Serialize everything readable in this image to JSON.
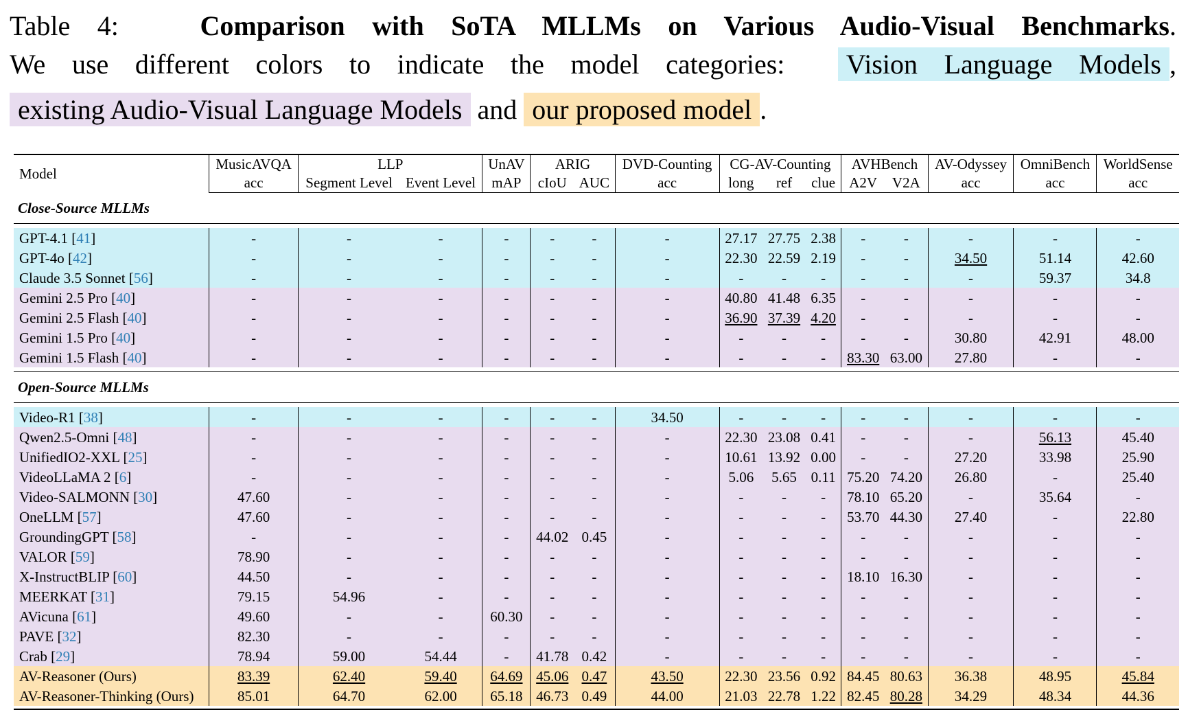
{
  "caption": {
    "label": "Table 4:",
    "title": "Comparison with SoTA MLLMs on Various Audio-Visual Benchmarks",
    "title_end": ".",
    "line2_text": "We use different colors to indicate the model categories:",
    "vlm_label": "Vision Language Models",
    "comma": ",",
    "avlm_label": "existing Audio-Visual Language Models",
    "and_text": "and",
    "ours_label": "our proposed model",
    "end_period": "."
  },
  "colors": {
    "vision_language": "#cdf0f7",
    "audio_visual": "#e8dcef",
    "ours": "#fde3b3",
    "citation": "#2f7fb5"
  },
  "header": {
    "model": "Model",
    "groups": [
      "MusicAVQA",
      "LLP",
      "UnAV",
      "ARIG",
      "DVD-Counting",
      "CG-AV-Counting",
      "AVHBench",
      "AV-Odyssey",
      "OmniBench",
      "WorldSense"
    ],
    "subcolumns": [
      "acc",
      "Segment Level",
      "Event Level",
      "mAP",
      "cIoU",
      "AUC",
      "acc",
      "long",
      "ref",
      "clue",
      "A2V",
      "V2A",
      "acc",
      "acc",
      "acc"
    ]
  },
  "sections": [
    {
      "title": "Close-Source MLLMs",
      "rows": [
        {
          "cat": "vlm",
          "name": "GPT-4.1",
          "ref": "41",
          "cells": [
            "-",
            "-",
            "-",
            "-",
            "-",
            "-",
            "-",
            "27.17",
            "27.75",
            "2.38",
            "-",
            "-",
            "-",
            "-",
            "-"
          ]
        },
        {
          "cat": "vlm",
          "name": "GPT-4o",
          "ref": "42",
          "cells": [
            "-",
            "-",
            "-",
            "-",
            "-",
            "-",
            "-",
            "22.30",
            "22.59",
            "2.19",
            "-",
            "-",
            "34.50",
            "51.14",
            "42.60"
          ]
        },
        {
          "cat": "vlm",
          "name": "Claude 3.5 Sonnet",
          "ref": "56",
          "cells": [
            "-",
            "-",
            "-",
            "-",
            "-",
            "-",
            "-",
            "-",
            "-",
            "-",
            "-",
            "-",
            "-",
            "59.37",
            "34.8"
          ]
        },
        {
          "cat": "avlm",
          "name": "Gemini 2.5 Pro",
          "ref": "40",
          "cells": [
            "-",
            "-",
            "-",
            "-",
            "-",
            "-",
            "-",
            "40.80",
            "41.48",
            "6.35",
            "-",
            "-",
            "-",
            "-",
            "-"
          ]
        },
        {
          "cat": "avlm",
          "name": "Gemini 2.5 Flash",
          "ref": "40",
          "cells": [
            "-",
            "-",
            "-",
            "-",
            "-",
            "-",
            "-",
            "36.90",
            "37.39",
            "4.20",
            "-",
            "-",
            "-",
            "-",
            "-"
          ]
        },
        {
          "cat": "avlm",
          "name": "Gemini 1.5 Pro",
          "ref": "40",
          "cells": [
            "-",
            "-",
            "-",
            "-",
            "-",
            "-",
            "-",
            "-",
            "-",
            "-",
            "-",
            "-",
            "30.80",
            "42.91",
            "48.00"
          ]
        },
        {
          "cat": "avlm",
          "name": "Gemini 1.5 Flash",
          "ref": "40",
          "cells": [
            "-",
            "-",
            "-",
            "-",
            "-",
            "-",
            "-",
            "-",
            "-",
            "-",
            "83.30",
            "63.00",
            "27.80",
            "-",
            "-"
          ]
        }
      ]
    },
    {
      "title": "Open-Source MLLMs",
      "rows": [
        {
          "cat": "vlm",
          "name": "Video-R1",
          "ref": "38",
          "cells": [
            "-",
            "-",
            "-",
            "-",
            "-",
            "-",
            "34.50",
            "-",
            "-",
            "-",
            "-",
            "-",
            "-",
            "-",
            "-"
          ]
        },
        {
          "cat": "avlm",
          "name": "Qwen2.5-Omni",
          "ref": "48",
          "cells": [
            "-",
            "-",
            "-",
            "-",
            "-",
            "-",
            "-",
            "22.30",
            "23.08",
            "0.41",
            "-",
            "-",
            "-",
            "56.13",
            "45.40"
          ]
        },
        {
          "cat": "avlm",
          "name": "UnifiedIO2-XXL",
          "ref": "25",
          "cells": [
            "-",
            "-",
            "-",
            "-",
            "-",
            "-",
            "-",
            "10.61",
            "13.92",
            "0.00",
            "-",
            "-",
            "27.20",
            "33.98",
            "25.90"
          ]
        },
        {
          "cat": "avlm",
          "name": "VideoLLaMA 2",
          "ref": "6",
          "cells": [
            "-",
            "-",
            "-",
            "-",
            "-",
            "-",
            "-",
            "5.06",
            "5.65",
            "0.11",
            "75.20",
            "74.20",
            "26.80",
            "-",
            "25.40"
          ]
        },
        {
          "cat": "avlm",
          "name": "Video-SALMONN",
          "ref": "30",
          "cells": [
            "47.60",
            "-",
            "-",
            "-",
            "-",
            "-",
            "-",
            "-",
            "-",
            "-",
            "78.10",
            "65.20",
            "-",
            "35.64",
            "-"
          ]
        },
        {
          "cat": "avlm",
          "name": "OneLLM",
          "ref": "57",
          "cells": [
            "47.60",
            "-",
            "-",
            "-",
            "-",
            "-",
            "-",
            "-",
            "-",
            "-",
            "53.70",
            "44.30",
            "27.40",
            "-",
            "22.80"
          ]
        },
        {
          "cat": "avlm",
          "name": "GroundingGPT",
          "ref": "58",
          "cells": [
            "-",
            "-",
            "-",
            "-",
            "44.02",
            "0.45",
            "-",
            "-",
            "-",
            "-",
            "-",
            "-",
            "-",
            "-",
            "-"
          ]
        },
        {
          "cat": "avlm",
          "name": "VALOR",
          "ref": "59",
          "cells": [
            "78.90",
            "-",
            "-",
            "-",
            "-",
            "-",
            "-",
            "-",
            "-",
            "-",
            "-",
            "-",
            "-",
            "-",
            "-"
          ]
        },
        {
          "cat": "avlm",
          "name": "X-InstructBLIP",
          "ref": "60",
          "cells": [
            "44.50",
            "-",
            "-",
            "-",
            "-",
            "-",
            "-",
            "-",
            "-",
            "-",
            "18.10",
            "16.30",
            "-",
            "-",
            "-"
          ]
        },
        {
          "cat": "avlm",
          "name": "MEERKAT",
          "ref": "31",
          "cells": [
            "79.15",
            "54.96",
            "-",
            "-",
            "-",
            "-",
            "-",
            "-",
            "-",
            "-",
            "-",
            "-",
            "-",
            "-",
            "-"
          ]
        },
        {
          "cat": "avlm",
          "name": "AVicuna",
          "ref": "61",
          "cells": [
            "49.60",
            "-",
            "-",
            "60.30",
            "-",
            "-",
            "-",
            "-",
            "-",
            "-",
            "-",
            "-",
            "-",
            "-",
            "-"
          ]
        },
        {
          "cat": "avlm",
          "name": "PAVE",
          "ref": "32",
          "cells": [
            "82.30",
            "-",
            "-",
            "-",
            "-",
            "-",
            "-",
            "-",
            "-",
            "-",
            "-",
            "-",
            "-",
            "-",
            "-"
          ]
        },
        {
          "cat": "avlm",
          "name": "Crab",
          "ref": "29",
          "cells": [
            "78.94",
            "59.00",
            "54.44",
            "-",
            "41.78",
            "0.42",
            "-",
            "-",
            "-",
            "-",
            "-",
            "-",
            "-",
            "-",
            "-"
          ]
        },
        {
          "cat": "ours",
          "name": "AV-Reasoner (Ours)",
          "ref": "",
          "cells": [
            "83.39",
            "62.40",
            "59.40",
            "64.69",
            "45.06",
            "0.47",
            "43.50",
            "22.30",
            "23.56",
            "0.92",
            "84.45",
            "80.63",
            "36.38",
            "48.95",
            "45.84"
          ]
        },
        {
          "cat": "ours",
          "name": "AV-Reasoner-Thinking (Ours)",
          "ref": "",
          "cells": [
            "85.01",
            "64.70",
            "62.00",
            "65.18",
            "46.73",
            "0.49",
            "44.00",
            "21.03",
            "22.78",
            "1.22",
            "82.45",
            "80.28",
            "34.29",
            "48.34",
            "44.36"
          ]
        }
      ]
    }
  ],
  "emphasis": {
    "bold": [
      "0:1:2:4",
      "0:3:2:12",
      "0:3:2:13",
      "0:3:2:14",
      "1:13:2:1",
      "1:13:2:2",
      "1:13:2:3",
      "1:13:2:4",
      "1:13:2:5",
      "1:13:2:6",
      "1:13:2:7",
      "1:12:2:11",
      "1:12:2:12",
      "1:12:2:13",
      "1:12:2:14"
    ],
    "underline": [
      "0:1:2:13",
      "0:4:2:12",
      "0:4:2:13",
      "0:4:2:14",
      "0:6:2:15",
      "1:1:2:16",
      "1:12:2:1",
      "1:12:2:2",
      "1:12:2:3",
      "1:12:2:4",
      "1:12:2:5",
      "1:12:2:6",
      "1:12:2:7",
      "1:12:2:17",
      "1:13:2:17"
    ]
  }
}
